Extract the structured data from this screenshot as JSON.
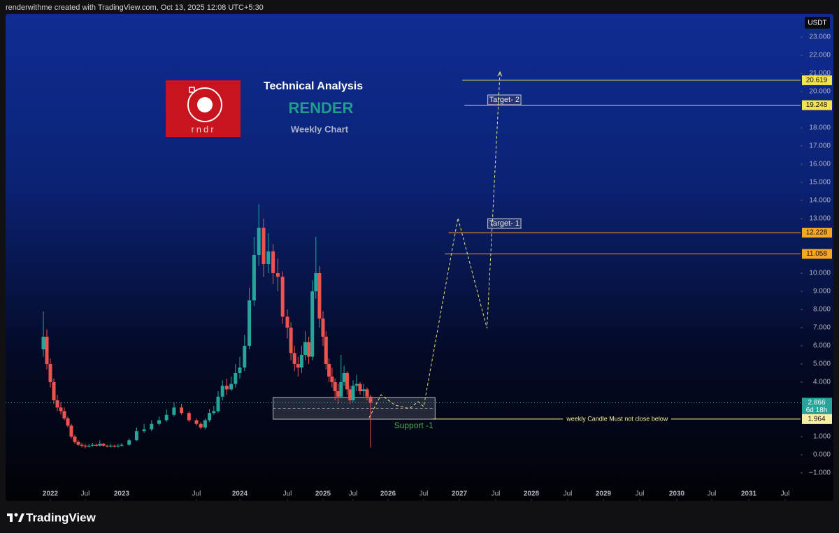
{
  "header": {
    "caption": "renderwithme created with TradingView.com, Oct 13, 2025 12:08 UTC+5:30"
  },
  "footer": {
    "brand": "TradingView"
  },
  "chart_data": {
    "type": "candlestick",
    "title": "Technical Analysis",
    "subtitle": "RENDER",
    "period": "Weekly Chart",
    "logo_text": "rndr",
    "currency": "USDT",
    "up_color": "#26a69a",
    "down_color": "#ef5350",
    "x": [
      2021.9,
      2021.95,
      2022,
      2022.05,
      2022.1,
      2022.15,
      2022.2,
      2022.25,
      2022.3,
      2022.35,
      2022.4,
      2022.45,
      2022.5,
      2022.55,
      2022.6,
      2022.65,
      2022.7,
      2022.75,
      2022.8,
      2022.85,
      2022.9,
      2022.95,
      2023,
      2023.05,
      2023.1,
      2023.15,
      2023.2,
      2023.25,
      2023.3,
      2023.35,
      2023.4,
      2023.45,
      2023.5,
      2023.55,
      2023.6,
      2023.65,
      2023.7,
      2023.75,
      2023.8,
      2023.85,
      2023.9,
      2023.95,
      2024,
      2024.05,
      2024.1,
      2024.15,
      2024.2,
      2024.25,
      2024.3,
      2024.35,
      2024.4,
      2024.45,
      2024.5,
      2024.55,
      2024.6,
      2024.65,
      2024.7,
      2024.75,
      2024.8,
      2024.85,
      2024.9,
      2024.95,
      2025,
      2025.05,
      2025.1,
      2025.15,
      2025.2,
      2025.25,
      2025.3,
      2025.35,
      2025.4,
      2025.45,
      2025.5,
      2025.55,
      2025.6,
      2025.65,
      2025.7,
      2025.75
    ],
    "open": [
      5.8,
      6.5,
      5.0,
      4.0,
      3.0,
      2.6,
      2.4,
      2.0,
      1.6,
      1.0,
      0.7,
      0.55,
      0.5,
      0.45,
      0.5,
      0.55,
      0.5,
      0.6,
      0.5,
      0.45,
      0.5,
      0.45,
      0.5,
      0.55,
      0.8,
      1.3,
      1.4,
      1.7,
      1.9,
      2.2,
      2.6,
      2.3,
      1.9,
      1.7,
      1.5,
      1.9,
      2.3,
      2.4,
      3.2,
      3.8,
      3.6,
      3.9,
      4.5,
      4.8,
      6.0,
      8.5,
      11.0,
      12.5,
      10.5,
      11.2,
      10.0,
      9.8,
      7.6,
      7.0,
      5.6,
      5.0,
      4.8,
      5.5,
      6.2,
      5.4,
      9.0,
      10.0,
      7.5,
      6.5,
      5.0,
      4.3,
      4.0,
      3.5,
      3.2,
      4.0,
      4.5,
      3.6,
      3.0,
      3.8,
      3.9,
      3.5,
      3.6,
      3.2
    ],
    "high": [
      7.9,
      6.9,
      5.3,
      4.2,
      3.3,
      2.9,
      2.6,
      2.1,
      1.7,
      1.1,
      0.8,
      0.65,
      0.6,
      0.6,
      0.65,
      0.6,
      0.8,
      0.65,
      0.55,
      0.6,
      0.55,
      0.6,
      0.65,
      0.9,
      1.5,
      1.7,
      1.9,
      2.1,
      2.5,
      2.9,
      2.8,
      2.4,
      2.0,
      1.8,
      2.0,
      2.5,
      2.7,
      3.5,
      4.1,
      4.2,
      4.3,
      5.0,
      5.4,
      6.6,
      9.2,
      12.0,
      13.8,
      13.0,
      12.2,
      11.6,
      10.8,
      10.1,
      8.0,
      7.3,
      6.0,
      5.4,
      6.0,
      6.8,
      6.5,
      9.6,
      12.0,
      10.4,
      7.9,
      6.8,
      5.3,
      4.8,
      4.2,
      3.9,
      5.5,
      4.9,
      4.6,
      3.8,
      4.1,
      4.4,
      4.0,
      3.9,
      3.7,
      3.3
    ],
    "low": [
      5.4,
      4.7,
      3.7,
      2.8,
      2.4,
      2.2,
      1.9,
      1.5,
      0.9,
      0.6,
      0.5,
      0.4,
      0.35,
      0.4,
      0.45,
      0.45,
      0.45,
      0.45,
      0.4,
      0.4,
      0.4,
      0.4,
      0.45,
      0.5,
      0.75,
      1.2,
      1.3,
      1.6,
      1.8,
      2.1,
      2.2,
      1.8,
      1.6,
      1.4,
      1.4,
      1.8,
      2.2,
      2.3,
      3.0,
      3.3,
      3.5,
      3.7,
      4.2,
      4.6,
      5.8,
      8.2,
      10.4,
      9.8,
      10.0,
      9.4,
      9.0,
      7.2,
      6.4,
      5.2,
      4.6,
      4.3,
      4.5,
      5.2,
      5.0,
      5.2,
      8.6,
      7.0,
      6.0,
      4.7,
      4.0,
      3.7,
      3.0,
      2.8,
      3.1,
      3.8,
      3.3,
      2.8,
      2.9,
      3.5,
      3.3,
      3.2,
      3.0,
      0.4
    ],
    "close": [
      6.5,
      5.0,
      4.0,
      3.0,
      2.6,
      2.4,
      2.0,
      1.6,
      1.0,
      0.7,
      0.55,
      0.5,
      0.45,
      0.5,
      0.55,
      0.5,
      0.6,
      0.5,
      0.45,
      0.5,
      0.45,
      0.5,
      0.55,
      0.8,
      1.3,
      1.4,
      1.7,
      1.9,
      2.2,
      2.6,
      2.3,
      1.9,
      1.7,
      1.5,
      1.9,
      2.3,
      2.4,
      3.2,
      3.8,
      3.6,
      3.9,
      4.5,
      4.8,
      6.0,
      8.5,
      11.0,
      12.5,
      10.5,
      11.2,
      10.0,
      9.8,
      7.6,
      7.0,
      5.6,
      5.0,
      4.8,
      5.5,
      6.2,
      5.4,
      9.0,
      10.0,
      7.5,
      6.5,
      5.0,
      4.3,
      4.0,
      3.5,
      3.2,
      4.0,
      4.5,
      3.6,
      3.0,
      3.8,
      3.9,
      3.5,
      3.6,
      3.2,
      2.866
    ],
    "xlim": [
      2021.36,
      2031.71
    ],
    "xticks": [
      2022,
      {
        "value": 2022.5,
        "label": "Jul"
      },
      2023,
      {
        "value": 2023.5,
        "label": "Jul"
      },
      2024,
      {
        "value": 2024.5,
        "label": "Jul"
      },
      2025,
      {
        "value": 2025.5,
        "label": "Jul"
      },
      2026,
      {
        "value": 2026.5,
        "label": "Jul"
      },
      2027,
      {
        "value": 2027.5,
        "label": "Jul"
      },
      2028,
      {
        "value": 2028.5,
        "label": "Jul"
      },
      2029,
      {
        "value": 2029.5,
        "label": "Jul"
      },
      2030,
      {
        "value": 2030.5,
        "label": "Jul"
      },
      2031,
      {
        "value": 2031.5,
        "label": "Jul"
      }
    ],
    "ylim": [
      -2.54,
      24.27
    ],
    "yticks": [
      {
        "value": 23,
        "label": "23.000"
      },
      {
        "value": 22,
        "label": "22.000"
      },
      {
        "value": 21,
        "label": "21.000"
      },
      {
        "value": 20,
        "label": "20.000"
      },
      {
        "value": 18,
        "label": "18.000"
      },
      {
        "value": 17,
        "label": "17.000"
      },
      {
        "value": 16,
        "label": "16.000"
      },
      {
        "value": 15,
        "label": "15.000"
      },
      {
        "value": 14,
        "label": "14.000"
      },
      {
        "value": 13,
        "label": "13.000"
      },
      {
        "value": 10,
        "label": "10.000"
      },
      {
        "value": 9,
        "label": "9.000"
      },
      {
        "value": 8,
        "label": "8.000"
      },
      {
        "value": 7,
        "label": "7.000"
      },
      {
        "value": 6,
        "label": "6.000"
      },
      {
        "value": 5,
        "label": "5.000"
      },
      {
        "value": 4,
        "label": "4.000"
      },
      {
        "value": 1,
        "label": "1.000"
      },
      {
        "value": 0,
        "label": "0.000"
      },
      {
        "value": -1,
        "label": "−1.000"
      }
    ],
    "grid": false,
    "last_price": {
      "value": 2.866,
      "countdown": "6d 18h",
      "color": "#26a69a"
    },
    "levels": [
      {
        "value": 20.619,
        "color": "#f2e44a",
        "start": 2027.04
      },
      {
        "value": 19.248,
        "color": "#f2e44a",
        "start": 2027.07
      },
      {
        "value": 12.228,
        "color": "#f5a623",
        "start": 2026.85
      },
      {
        "value": 11.058,
        "color": "#f5a623",
        "start": 2026.8
      },
      {
        "value": 1.964,
        "color": "#f6f0a0",
        "start": 2026.63,
        "note": "weekly Candle Must not close below",
        "note_x": 2029.19
      }
    ],
    "zone": {
      "x": [
        2024.35,
        2026.66
      ],
      "y": [
        1.96,
        3.15
      ]
    },
    "support_label": {
      "text": "Support -1",
      "x": 2026.36,
      "y": 1.58,
      "color": "#4caf50"
    },
    "targets": [
      {
        "text": "Target- 2",
        "x": 2027.41,
        "y": 19.54
      },
      {
        "text": "Target- 1",
        "x": 2027.41,
        "y": 12.73
      }
    ],
    "projection": {
      "color": "#e8e27a",
      "x": [
        2025.73,
        2025.9,
        2026.1,
        2026.3,
        2026.42,
        2026.5,
        2026.98,
        2027.38,
        2027.56
      ],
      "y": [
        2.04,
        3.3,
        2.73,
        2.54,
        2.92,
        2.65,
        13.04,
        6.96,
        21.08
      ]
    }
  }
}
